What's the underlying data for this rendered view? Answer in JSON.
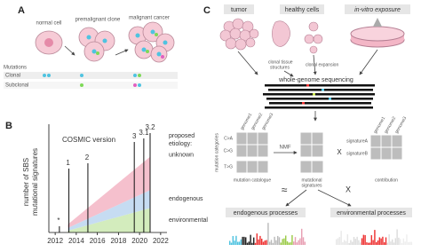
{
  "panel_a": {
    "label": "A",
    "stages": [
      "normal cell",
      "premalignant clone",
      "malignant cancer"
    ],
    "mutations_title": "Mutations",
    "rows": [
      "Clonal",
      "Subclonal"
    ]
  },
  "chart_data": {
    "type": "area",
    "panel_label": "B",
    "title": "COSMIC version",
    "ylabel": [
      "number of SBS",
      "mutational signatures"
    ],
    "x": [
      2013.2,
      2021
    ],
    "xlim": [
      2011.4,
      2022.6
    ],
    "xticks": [
      2012,
      2014,
      2016,
      2018,
      2020,
      2022
    ],
    "ylim": [
      0,
      120
    ],
    "stacked": true,
    "series": [
      {
        "name": "environmental",
        "color": "#d3ecbd",
        "values": [
          2,
          27
        ]
      },
      {
        "name": "endogenous",
        "color": "#c6dcf2",
        "values": [
          3,
          20
        ]
      },
      {
        "name": "unknown",
        "color": "#f5c0cd",
        "values": [
          4,
          37
        ]
      }
    ],
    "etiology_label": [
      "proposed",
      "etiology:"
    ],
    "versions": [
      {
        "label": "*",
        "x": 2012.4
      },
      {
        "label": "1",
        "x": 2013.3
      },
      {
        "label": "2",
        "x": 2015.1
      },
      {
        "label": "3",
        "x": 2019.5
      },
      {
        "label": "3.1",
        "x": 2020.4
      },
      {
        "label": "3.2",
        "x": 2021
      }
    ]
  },
  "panel_c": {
    "label": "C",
    "sources": [
      "tumor",
      "healthy cells",
      "in-vitro exposure"
    ],
    "clonal_tissue": [
      "clonal tissue",
      "structures"
    ],
    "clonal_expansion": "clonal expansion",
    "sequencing": "whole-genome sequencing",
    "genomes": [
      "genome1",
      "genome2",
      "genome3"
    ],
    "categories": [
      "C>A",
      "C>G",
      "T>G"
    ],
    "categories_axis": "mutation categories",
    "catalogue": "mutation catalogue",
    "nmf": "NMF",
    "times": "X",
    "signatures_caption": [
      "mutational",
      "signatures"
    ],
    "signatures": [
      "signatureA",
      "signatureB"
    ],
    "contribution_genomes": [
      "genome1",
      "genome2",
      "genome3"
    ],
    "contribution": "contribution",
    "bottom_ops": [
      "≈",
      "X"
    ],
    "processes": [
      "endogenous processes",
      "environmental processes"
    ]
  }
}
